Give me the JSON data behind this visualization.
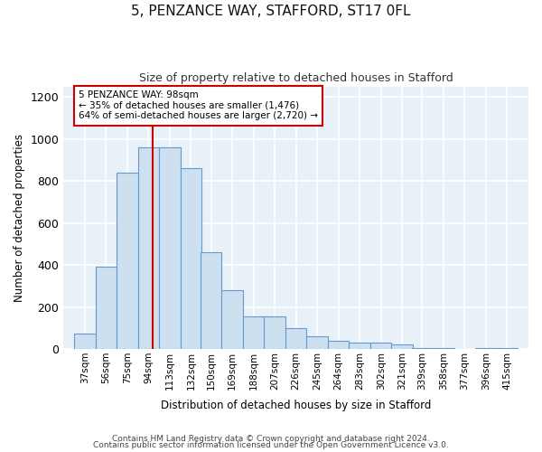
{
  "title": "5, PENZANCE WAY, STAFFORD, ST17 0FL",
  "subtitle": "Size of property relative to detached houses in Stafford",
  "xlabel": "Distribution of detached houses by size in Stafford",
  "ylabel": "Number of detached properties",
  "footnote1": "Contains HM Land Registry data © Crown copyright and database right 2024.",
  "footnote2": "Contains public sector information licensed under the Open Government Licence v3.0.",
  "annotation_line1": "5 PENZANCE WAY: 98sqm",
  "annotation_line2": "← 35% of detached houses are smaller (1,476)",
  "annotation_line3": "64% of semi-detached houses are larger (2,720) →",
  "bar_color": "#cce0f0",
  "bar_edge_color": "#6699cc",
  "vertical_line_color": "#cc0000",
  "vertical_line_x": 98,
  "annotation_box_edge_color": "#cc0000",
  "fig_bg_color": "#ffffff",
  "plot_bg_color": "#e8f0f8",
  "categories": [
    "37sqm",
    "56sqm",
    "75sqm",
    "94sqm",
    "113sqm",
    "132sqm",
    "150sqm",
    "169sqm",
    "188sqm",
    "207sqm",
    "226sqm",
    "245sqm",
    "264sqm",
    "283sqm",
    "302sqm",
    "321sqm",
    "339sqm",
    "358sqm",
    "377sqm",
    "396sqm",
    "415sqm"
  ],
  "bin_centers": [
    37,
    56,
    75,
    94,
    113,
    132,
    150,
    169,
    188,
    207,
    226,
    245,
    264,
    283,
    302,
    321,
    339,
    358,
    377,
    396,
    415
  ],
  "bin_width": 19,
  "values": [
    75,
    390,
    840,
    960,
    960,
    860,
    460,
    280,
    155,
    155,
    100,
    60,
    40,
    30,
    30,
    20,
    5,
    5,
    0,
    5,
    5
  ],
  "ylim": [
    0,
    1250
  ],
  "yticks": [
    0,
    200,
    400,
    600,
    800,
    1000,
    1200
  ]
}
